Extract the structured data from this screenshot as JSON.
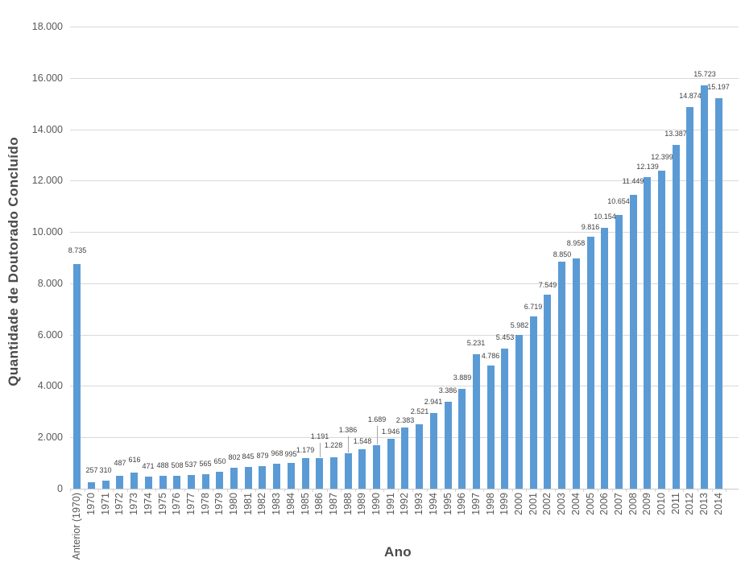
{
  "chart_data": {
    "type": "bar",
    "title": "",
    "xlabel": "Ano",
    "ylabel": "Quantidade de Doutorado Concluído",
    "categories": [
      "Anterior (1970)",
      "1970",
      "1971",
      "1972",
      "1973",
      "1974",
      "1975",
      "1976",
      "1977",
      "1978",
      "1979",
      "1980",
      "1981",
      "1982",
      "1983",
      "1984",
      "1985",
      "1986",
      "1987",
      "1988",
      "1989",
      "1990",
      "1991",
      "1992",
      "1993",
      "1994",
      "1995",
      "1996",
      "1997",
      "1998",
      "1999",
      "2000",
      "2001",
      "2002",
      "2003",
      "2004",
      "2005",
      "2006",
      "2007",
      "2008",
      "2009",
      "2010",
      "2011",
      "2012",
      "2013",
      "2014"
    ],
    "values": [
      8735,
      257,
      310,
      487,
      616,
      471,
      488,
      508,
      537,
      565,
      650,
      802,
      845,
      879,
      968,
      995,
      1179,
      1191,
      1228,
      1386,
      1548,
      1689,
      1946,
      2383,
      2521,
      2941,
      3386,
      3889,
      5231,
      4786,
      5453,
      5982,
      6719,
      7549,
      8850,
      8958,
      9816,
      10154,
      10654,
      11449,
      12139,
      12399,
      13387,
      14874,
      15723,
      15197
    ],
    "data_labels": [
      "8.735",
      "257",
      "310",
      "487",
      "616",
      "471",
      "488",
      "508",
      "537",
      "565",
      "650",
      "802",
      "845",
      "879",
      "968",
      "995",
      "1.179",
      "1.191",
      "1.228",
      "1.386",
      "1.548",
      "1.689",
      "1.946",
      "2.383",
      "2.521",
      "2.941",
      "3.386",
      "3.889",
      "5.231",
      "4.786",
      "5.453",
      "5.982",
      "6.719",
      "7.549",
      "8.850",
      "8.958",
      "9.816",
      "10.154",
      "10.654",
      "11.449",
      "12.139",
      "12.399",
      "13.387",
      "14.874",
      "15.723",
      "15.197"
    ],
    "ylim": [
      0,
      18000
    ],
    "ytick_step": 2000,
    "ytick_labels": [
      "0",
      "2.000",
      "4.000",
      "6.000",
      "8.000",
      "10.000",
      "12.000",
      "14.000",
      "16.000",
      "18.000"
    ],
    "grid": "horizontal",
    "legend": "none",
    "bar_color": "#5b9bd5",
    "label_layout": {
      "dy": [
        8,
        6,
        4,
        7,
        7,
        4,
        4,
        4,
        4,
        4,
        4,
        4,
        4,
        4,
        4,
        2,
        1,
        18,
        6,
        20,
        1,
        23,
        0,
        0,
        7,
        5,
        5,
        5,
        5,
        3,
        5,
        3,
        3,
        3,
        0,
        10,
        3,
        5,
        8,
        8,
        4,
        8,
        5,
        5,
        5,
        5
      ],
      "leader_indices": [
        17,
        19,
        21
      ]
    }
  },
  "colors": {
    "bar": "#5b9bd5",
    "gridline": "#d9d9d9",
    "axis_line": "#c9c9c9",
    "tick_text": "#595959",
    "data_label_text": "#404040",
    "axis_title_text": "#4a4a4a",
    "leader_line": "#a6a6a6",
    "background": "#ffffff"
  }
}
